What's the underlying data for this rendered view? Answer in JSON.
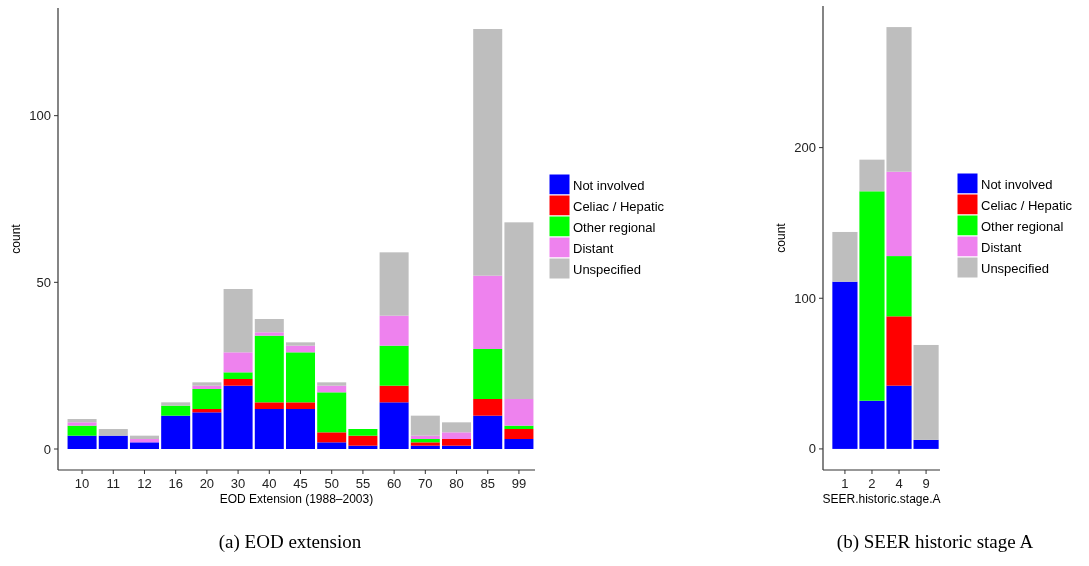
{
  "chart_data": [
    {
      "type": "bar",
      "title": "(a) EOD extension",
      "xlabel": "EOD Extension (1988–2003)",
      "ylabel": "count",
      "stacked": true,
      "legend": "right",
      "grid": false,
      "categories": [
        "10",
        "11",
        "12",
        "16",
        "20",
        "30",
        "40",
        "45",
        "50",
        "55",
        "60",
        "70",
        "80",
        "85",
        "99"
      ],
      "ylim": [
        -6.3,
        132.3
      ],
      "yticks": [
        0,
        50,
        100
      ],
      "series": [
        {
          "name": "Not involved",
          "color": "#0000ff",
          "values": [
            4,
            4,
            2,
            10,
            11,
            19,
            12,
            12,
            2,
            1,
            14,
            1,
            1,
            10,
            3
          ]
        },
        {
          "name": "Celiac / Hepatic",
          "color": "#ff0000",
          "values": [
            0,
            0,
            0,
            0,
            1,
            2,
            2,
            2,
            3,
            3,
            5,
            1,
            2,
            5,
            3
          ]
        },
        {
          "name": "Other regional",
          "color": "#00ff00",
          "values": [
            3,
            0,
            0,
            3,
            6,
            2,
            20,
            15,
            12,
            2,
            12,
            1,
            0,
            15,
            1
          ]
        },
        {
          "name": "Distant",
          "color": "#ee82ee",
          "values": [
            1,
            0,
            1,
            0,
            1,
            6,
            1,
            2,
            2,
            0,
            9,
            1,
            2,
            22,
            8
          ]
        },
        {
          "name": "Unspecified",
          "color": "#bebebe",
          "values": [
            1,
            2,
            1,
            1,
            1,
            19,
            4,
            1,
            1,
            0,
            19,
            6,
            3,
            74,
            53
          ]
        }
      ]
    },
    {
      "type": "bar",
      "title": "(b) SEER historic stage A",
      "xlabel": "SEER.historic.stage.A",
      "ylabel": "count",
      "stacked": true,
      "legend": "right",
      "grid": false,
      "categories": [
        "1",
        "2",
        "4",
        "9"
      ],
      "ylim": [
        -14,
        294
      ],
      "yticks": [
        0,
        100,
        200
      ],
      "series": [
        {
          "name": "Not involved",
          "color": "#0000ff",
          "values": [
            111,
            32,
            42,
            6
          ]
        },
        {
          "name": "Celiac / Hepatic",
          "color": "#ff0000",
          "values": [
            0,
            0,
            46,
            0
          ]
        },
        {
          "name": "Other regional",
          "color": "#00ff00",
          "values": [
            0,
            139,
            40,
            0
          ]
        },
        {
          "name": "Distant",
          "color": "#ee82ee",
          "values": [
            0,
            0,
            56,
            0
          ]
        },
        {
          "name": "Unspecified",
          "color": "#bebebe",
          "values": [
            33,
            21,
            96,
            63
          ]
        }
      ]
    }
  ]
}
